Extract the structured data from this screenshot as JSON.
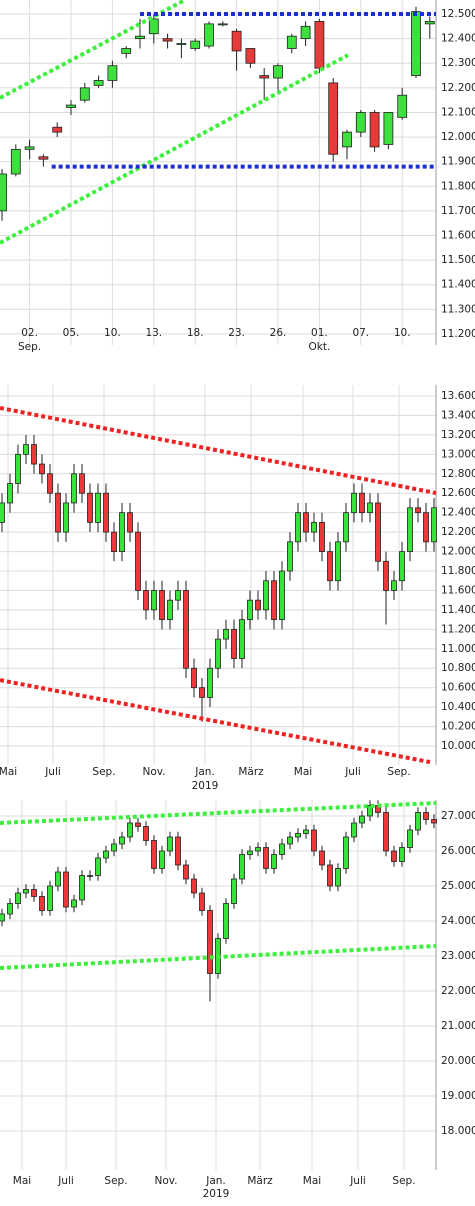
{
  "chart_data": [
    {
      "type": "candlestick",
      "categories": [
        null,
        null,
        "02.",
        null,
        null,
        "05.",
        null,
        null,
        "10.",
        null,
        null,
        "13.",
        null,
        null,
        "18.",
        null,
        null,
        "23.",
        null,
        null,
        "26.",
        null,
        null,
        "01.",
        null,
        null,
        "07.",
        null,
        null,
        "10.",
        null,
        null
      ],
      "x_sublabels": [
        null,
        null,
        "Sep.",
        null,
        null,
        null,
        null,
        null,
        null,
        null,
        null,
        null,
        null,
        null,
        null,
        null,
        null,
        null,
        null,
        null,
        null,
        null,
        null,
        "Okt.",
        null,
        null,
        null,
        null,
        null,
        null,
        null,
        null
      ],
      "open": [
        11.7,
        11.85,
        11.95,
        11.92,
        12.04,
        12.12,
        12.15,
        12.21,
        12.23,
        12.34,
        12.4,
        12.42,
        12.4,
        12.38,
        12.36,
        12.37,
        12.46,
        12.43,
        12.36,
        12.25,
        12.24,
        12.36,
        12.4,
        12.47,
        12.22,
        11.96,
        12.02,
        12.1,
        11.97,
        12.08,
        12.25,
        12.46
      ],
      "high": [
        11.87,
        11.97,
        11.99,
        11.93,
        12.06,
        12.15,
        12.22,
        12.25,
        12.31,
        12.37,
        12.48,
        12.5,
        12.42,
        12.4,
        12.4,
        12.47,
        12.47,
        12.44,
        12.36,
        12.28,
        12.3,
        12.42,
        12.47,
        12.48,
        12.24,
        12.03,
        12.11,
        12.11,
        12.1,
        12.2,
        12.53,
        12.49
      ],
      "low": [
        11.66,
        11.84,
        11.91,
        11.88,
        12.0,
        12.09,
        12.14,
        12.2,
        12.2,
        12.32,
        12.36,
        12.38,
        12.36,
        12.32,
        12.35,
        12.36,
        12.45,
        12.27,
        12.28,
        12.15,
        12.19,
        12.34,
        12.37,
        12.26,
        11.9,
        11.91,
        12.0,
        11.94,
        11.95,
        12.07,
        12.24,
        12.4
      ],
      "close": [
        11.85,
        11.95,
        11.96,
        11.91,
        12.02,
        12.13,
        12.2,
        12.23,
        12.29,
        12.36,
        12.41,
        12.48,
        12.39,
        12.38,
        12.39,
        12.46,
        12.46,
        12.35,
        12.3,
        12.24,
        12.29,
        12.41,
        12.45,
        12.28,
        11.93,
        12.02,
        12.1,
        11.96,
        12.1,
        12.17,
        12.51,
        12.47
      ],
      "up_color": "#3ee03e",
      "down_color": "#e53b3b",
      "xlim": [
        -0.145,
        31.45
      ],
      "ylim": [
        11.155,
        12.557
      ],
      "yticks": [
        {
          "value": 11.2,
          "label": "11.200"
        },
        {
          "value": 11.3,
          "label": "11.300"
        },
        {
          "value": 11.4,
          "label": "11.400"
        },
        {
          "value": 11.5,
          "label": "11.500"
        },
        {
          "value": 11.6,
          "label": "11.600"
        },
        {
          "value": 11.7,
          "label": "11.700"
        },
        {
          "value": 11.8,
          "label": "11.800"
        },
        {
          "value": 11.9,
          "label": "11.900"
        },
        {
          "value": 12.0,
          "label": "12.000"
        },
        {
          "value": 12.1,
          "label": "12.100"
        },
        {
          "value": 12.2,
          "label": "12.200"
        },
        {
          "value": 12.3,
          "label": "12.300"
        },
        {
          "value": 12.4,
          "label": "12.400"
        },
        {
          "value": 12.5,
          "label": "12.500"
        }
      ],
      "grid": true,
      "lines": [
        {
          "color": "#3ef03e",
          "x": [
            -0.145,
            13.26
          ],
          "y": [
            12.159,
            12.557
          ]
        },
        {
          "color": "#3ef03e",
          "x": [
            -0.145,
            25.07
          ],
          "y": [
            11.57,
            12.333
          ]
        },
        {
          "color": "#1d2fd0",
          "x": [
            10,
            31.45
          ],
          "y": [
            12.5,
            12.5
          ]
        },
        {
          "color": "#1d2fd0",
          "x": [
            3.6,
            31.45
          ],
          "y": [
            11.88,
            11.88
          ]
        }
      ]
    },
    {
      "type": "candlestick",
      "x": [
        0,
        1,
        2,
        3,
        4,
        5,
        6,
        7,
        8,
        9,
        10,
        11,
        12,
        13,
        14,
        15,
        16,
        17,
        18,
        19,
        20,
        21,
        22,
        23,
        24,
        25,
        26,
        27,
        28,
        29,
        30,
        31,
        32,
        33,
        34,
        35,
        36,
        37,
        38,
        39,
        40,
        41,
        42,
        43,
        44,
        45,
        46,
        47,
        48,
        49,
        50,
        51,
        52,
        53,
        54
      ],
      "open": [
        12.3,
        12.5,
        12.7,
        13.0,
        13.1,
        12.9,
        12.8,
        12.6,
        12.2,
        12.5,
        12.8,
        12.6,
        12.3,
        12.6,
        12.2,
        12.0,
        12.4,
        12.2,
        11.6,
        11.4,
        11.6,
        11.3,
        11.5,
        11.6,
        10.8,
        10.6,
        10.5,
        10.8,
        11.1,
        11.2,
        10.9,
        11.3,
        11.5,
        11.4,
        11.7,
        11.3,
        11.8,
        12.1,
        12.4,
        12.2,
        12.3,
        12.0,
        11.7,
        12.1,
        12.4,
        12.6,
        12.4,
        12.5,
        11.9,
        11.6,
        11.7,
        12.0,
        12.45,
        12.4,
        12.1
      ],
      "high": [
        12.6,
        12.8,
        13.1,
        13.2,
        13.2,
        13.0,
        12.9,
        12.7,
        12.6,
        12.9,
        12.9,
        12.7,
        12.7,
        12.7,
        12.3,
        12.5,
        12.5,
        12.3,
        11.7,
        11.7,
        11.7,
        11.6,
        11.7,
        11.7,
        10.9,
        10.7,
        10.9,
        11.2,
        11.3,
        11.3,
        11.4,
        11.6,
        11.6,
        11.8,
        11.8,
        11.9,
        12.2,
        12.5,
        12.5,
        12.4,
        12.4,
        12.1,
        12.2,
        12.5,
        12.7,
        12.7,
        12.6,
        12.6,
        12.0,
        11.8,
        12.1,
        12.55,
        12.55,
        12.5,
        12.55
      ],
      "low": [
        12.2,
        12.4,
        12.6,
        12.9,
        12.8,
        12.7,
        12.5,
        12.1,
        12.1,
        12.4,
        12.5,
        12.2,
        12.2,
        12.1,
        11.9,
        11.9,
        12.1,
        11.5,
        11.3,
        11.3,
        11.2,
        11.2,
        11.4,
        10.7,
        10.5,
        10.25,
        10.4,
        10.7,
        11.0,
        10.8,
        10.8,
        11.2,
        11.3,
        11.3,
        11.2,
        11.2,
        11.7,
        12.0,
        12.1,
        12.1,
        11.9,
        11.6,
        11.6,
        12.0,
        12.3,
        12.3,
        12.3,
        11.8,
        11.25,
        11.5,
        11.6,
        11.9,
        12.3,
        12.0,
        12.0
      ],
      "close": [
        12.5,
        12.7,
        13.0,
        13.1,
        12.9,
        12.8,
        12.6,
        12.2,
        12.5,
        12.8,
        12.6,
        12.3,
        12.6,
        12.2,
        12.0,
        12.4,
        12.2,
        11.6,
        11.4,
        11.6,
        11.3,
        11.5,
        11.6,
        10.8,
        10.6,
        10.5,
        10.8,
        11.1,
        11.2,
        10.9,
        11.3,
        11.5,
        11.4,
        11.7,
        11.3,
        11.8,
        12.1,
        12.4,
        12.2,
        12.3,
        12.0,
        11.7,
        12.1,
        12.4,
        12.6,
        12.4,
        12.5,
        11.9,
        11.6,
        11.7,
        12.0,
        12.45,
        12.4,
        12.1,
        12.45
      ],
      "up_color": "#3ee03e",
      "down_color": "#e53b3b",
      "xlim": [
        -0.25,
        54.25
      ],
      "ylim": [
        9.805,
        13.713
      ],
      "xticks": [
        {
          "value": 0.75,
          "label": "Mai"
        },
        {
          "value": 6.375,
          "label": "Juli"
        },
        {
          "value": 12.75,
          "label": "Sep."
        },
        {
          "value": 19,
          "label": "Nov."
        },
        {
          "value": 25.375,
          "label": "Jan."
        },
        {
          "value": 31.125,
          "label": "März"
        },
        {
          "value": 37.625,
          "label": "Mai"
        },
        {
          "value": 43.875,
          "label": "Juli"
        },
        {
          "value": 49.625,
          "label": "Sep."
        }
      ],
      "xsubticks": [
        {
          "value": 25.375,
          "label": "2019"
        }
      ],
      "yticks": [
        {
          "value": 10.0,
          "label": "10.000"
        },
        {
          "value": 10.2,
          "label": "10.200"
        },
        {
          "value": 10.4,
          "label": "10.400"
        },
        {
          "value": 10.6,
          "label": "10.600"
        },
        {
          "value": 10.8,
          "label": "10.800"
        },
        {
          "value": 11.0,
          "label": "11.000"
        },
        {
          "value": 11.2,
          "label": "11.200"
        },
        {
          "value": 11.4,
          "label": "11.400"
        },
        {
          "value": 11.6,
          "label": "11.600"
        },
        {
          "value": 11.8,
          "label": "11.800"
        },
        {
          "value": 12.0,
          "label": "12.000"
        },
        {
          "value": 12.2,
          "label": "12.200"
        },
        {
          "value": 12.4,
          "label": "12.400"
        },
        {
          "value": 12.6,
          "label": "12.600"
        },
        {
          "value": 12.8,
          "label": "12.800"
        },
        {
          "value": 13.0,
          "label": "13.000"
        },
        {
          "value": 13.2,
          "label": "13.200"
        },
        {
          "value": 13.4,
          "label": "13.400"
        },
        {
          "value": 13.6,
          "label": "13.600"
        }
      ],
      "grid": true,
      "lines": [
        {
          "color": "#ee2222",
          "x": [
            -0.25,
            54.25
          ],
          "y": [
            13.477,
            12.602
          ]
        },
        {
          "color": "#ee2222",
          "x": [
            -0.25,
            53.5
          ],
          "y": [
            10.678,
            9.835
          ]
        }
      ]
    },
    {
      "type": "candlestick",
      "x": [
        0,
        1,
        2,
        3,
        4,
        5,
        6,
        7,
        8,
        9,
        10,
        11,
        12,
        13,
        14,
        15,
        16,
        17,
        18,
        19,
        20,
        21,
        22,
        23,
        24,
        25,
        26,
        27,
        28,
        29,
        30,
        31,
        32,
        33,
        34,
        35,
        36,
        37,
        38,
        39,
        40,
        41,
        42,
        43,
        44,
        45,
        46,
        47,
        48,
        49,
        50,
        51,
        52,
        53,
        54
      ],
      "open": [
        24.0,
        24.2,
        24.5,
        24.8,
        24.9,
        24.7,
        24.3,
        25.0,
        25.4,
        24.4,
        24.6,
        25.3,
        25.3,
        25.8,
        26.0,
        26.2,
        26.4,
        26.8,
        26.7,
        26.3,
        25.5,
        26.0,
        26.4,
        25.6,
        25.2,
        24.8,
        24.3,
        22.5,
        23.5,
        24.5,
        25.2,
        25.9,
        26.0,
        26.1,
        25.5,
        25.9,
        26.2,
        26.4,
        26.5,
        26.6,
        26.0,
        25.6,
        25.0,
        25.5,
        26.4,
        26.8,
        27.0,
        27.3,
        27.1,
        26.0,
        25.7,
        26.1,
        26.6,
        27.1,
        26.9
      ],
      "high": [
        24.35,
        24.65,
        24.95,
        25.05,
        25.05,
        24.85,
        25.15,
        25.55,
        25.55,
        24.75,
        25.45,
        25.45,
        25.95,
        26.15,
        26.35,
        26.55,
        26.95,
        26.95,
        26.85,
        26.45,
        26.15,
        26.55,
        26.55,
        25.75,
        25.35,
        24.95,
        24.45,
        23.65,
        24.65,
        25.35,
        26.05,
        26.15,
        26.25,
        26.25,
        26.05,
        26.35,
        26.55,
        26.65,
        26.75,
        26.75,
        26.15,
        25.75,
        25.65,
        26.55,
        26.95,
        27.15,
        27.45,
        27.45,
        27.25,
        26.15,
        26.25,
        26.75,
        27.25,
        27.25,
        27.05
      ],
      "low": [
        23.85,
        24.05,
        24.35,
        24.65,
        24.55,
        24.15,
        24.15,
        24.85,
        24.25,
        24.25,
        24.45,
        25.15,
        25.15,
        25.65,
        25.85,
        26.05,
        26.25,
        26.55,
        26.15,
        25.35,
        25.35,
        25.85,
        25.45,
        25.05,
        24.65,
        24.15,
        21.7,
        22.35,
        23.35,
        24.35,
        25.05,
        25.75,
        25.85,
        25.35,
        25.35,
        25.75,
        26.05,
        26.25,
        26.35,
        25.85,
        25.45,
        24.85,
        24.85,
        25.35,
        26.25,
        26.65,
        26.85,
        26.95,
        25.85,
        25.55,
        25.55,
        25.95,
        26.45,
        26.75,
        26.65
      ],
      "close": [
        24.2,
        24.5,
        24.8,
        24.9,
        24.7,
        24.3,
        25.0,
        25.4,
        24.4,
        24.6,
        25.3,
        25.3,
        25.8,
        26.0,
        26.2,
        26.4,
        26.8,
        26.7,
        26.3,
        25.5,
        26.0,
        26.4,
        25.6,
        25.2,
        24.8,
        24.3,
        22.5,
        23.5,
        24.5,
        25.2,
        25.9,
        26.0,
        26.1,
        25.5,
        25.9,
        26.2,
        26.4,
        26.5,
        26.6,
        26.0,
        25.6,
        25.0,
        25.5,
        26.4,
        26.8,
        27.0,
        27.3,
        27.1,
        26.0,
        25.7,
        26.1,
        26.6,
        27.1,
        26.9,
        26.8
      ],
      "up_color": "#3ee03e",
      "down_color": "#e53b3b",
      "xlim": [
        -0.25,
        54.25
      ],
      "ylim": [
        16.886,
        27.457
      ],
      "xticks": [
        {
          "value": 2.5,
          "label": "Mai"
        },
        {
          "value": 8,
          "label": "Juli"
        },
        {
          "value": 14.25,
          "label": "Sep."
        },
        {
          "value": 20.5,
          "label": "Nov."
        },
        {
          "value": 26.75,
          "label": "Jan."
        },
        {
          "value": 32.25,
          "label": "März"
        },
        {
          "value": 38.75,
          "label": "Mai"
        },
        {
          "value": 44.5,
          "label": "Juli"
        },
        {
          "value": 50.25,
          "label": "Sep."
        }
      ],
      "xsubticks": [
        {
          "value": 26.75,
          "label": "2019"
        }
      ],
      "yticks": [
        {
          "value": 18,
          "label": "18.000"
        },
        {
          "value": 19,
          "label": "19.000"
        },
        {
          "value": 20,
          "label": "20.000"
        },
        {
          "value": 21,
          "label": "21.000"
        },
        {
          "value": 22,
          "label": "22.000"
        },
        {
          "value": 23,
          "label": "23.000"
        },
        {
          "value": 24,
          "label": "24.000"
        },
        {
          "value": 25,
          "label": "25.000"
        },
        {
          "value": 26,
          "label": "26.000"
        },
        {
          "value": 27,
          "label": "27.000"
        }
      ],
      "grid": true,
      "lines": [
        {
          "color": "#3ef03e",
          "x": [
            -0.25,
            54.25
          ],
          "y": [
            26.8,
            27.371
          ]
        },
        {
          "color": "#3ef03e",
          "x": [
            -0.25,
            54.25
          ],
          "y": [
            22.657,
            23.286
          ]
        }
      ]
    }
  ]
}
